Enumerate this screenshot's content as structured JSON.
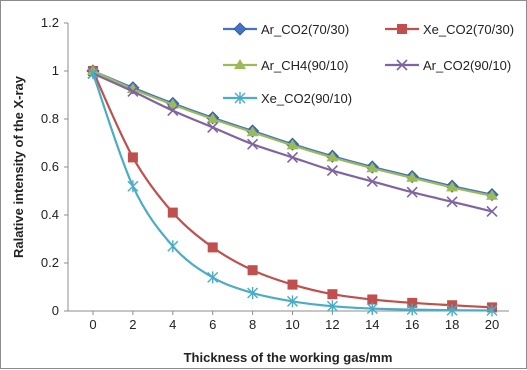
{
  "chart_data": {
    "type": "line",
    "title": "",
    "xlabel": "Thickness of  the working gas/mm",
    "ylabel": "Ralative intensity of the X-ray",
    "x": [
      0,
      2,
      4,
      6,
      8,
      10,
      12,
      14,
      16,
      18,
      20
    ],
    "xlim": [
      0,
      20
    ],
    "ylim": [
      0,
      1.2
    ],
    "x_ticks": [
      "0",
      "2",
      "4",
      "6",
      "8",
      "10",
      "12",
      "14",
      "16",
      "18",
      "20"
    ],
    "y_ticks": [
      "0",
      "0.2",
      "0.4",
      "0.6",
      "0.8",
      "1",
      "1.2"
    ],
    "grid": false,
    "legend": "top-right, inside plot area",
    "series": [
      {
        "name": "Ar_CO2(70/30)",
        "color": "#4472C4",
        "marker": "diamond",
        "values": [
          1.0,
          0.93,
          0.865,
          0.805,
          0.75,
          0.695,
          0.645,
          0.6,
          0.56,
          0.52,
          0.485
        ]
      },
      {
        "name": "Xe_CO2(70/30)",
        "color": "#C0504D",
        "marker": "square",
        "values": [
          1.0,
          0.64,
          0.41,
          0.265,
          0.17,
          0.11,
          0.07,
          0.048,
          0.034,
          0.024,
          0.015
        ]
      },
      {
        "name": "Ar_CH4(90/10)",
        "color": "#9BBB59",
        "marker": "triangle",
        "values": [
          1.0,
          0.925,
          0.86,
          0.8,
          0.745,
          0.69,
          0.64,
          0.595,
          0.555,
          0.515,
          0.48
        ]
      },
      {
        "name": "Ar_CO2(90/10)",
        "color": "#8064A2",
        "marker": "x",
        "values": [
          0.99,
          0.915,
          0.835,
          0.765,
          0.695,
          0.64,
          0.585,
          0.54,
          0.495,
          0.455,
          0.415
        ]
      },
      {
        "name": "Xe_CO2(90/10)",
        "color": "#4BACC6",
        "marker": "star",
        "values": [
          0.99,
          0.52,
          0.27,
          0.14,
          0.075,
          0.04,
          0.02,
          0.01,
          0.006,
          0.003,
          0.002
        ]
      }
    ]
  }
}
